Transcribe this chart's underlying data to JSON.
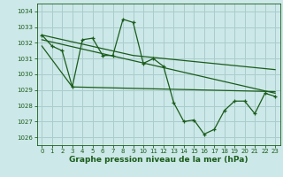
{
  "bg_color": "#cce8e8",
  "grid_color": "#aacccc",
  "line_color": "#1a5c1a",
  "title": "Graphe pression niveau de la mer (hPa)",
  "title_fontsize": 6.5,
  "xlim": [
    -0.5,
    23.5
  ],
  "ylim": [
    1025.5,
    1034.5
  ],
  "yticks": [
    1026,
    1027,
    1028,
    1029,
    1030,
    1031,
    1032,
    1033,
    1034
  ],
  "xticks": [
    0,
    1,
    2,
    3,
    4,
    5,
    6,
    7,
    8,
    9,
    10,
    11,
    12,
    13,
    14,
    15,
    16,
    17,
    18,
    19,
    20,
    21,
    22,
    23
  ],
  "series1_x": [
    0,
    1,
    2,
    3,
    4,
    5,
    6,
    7,
    8,
    9,
    10,
    11,
    12,
    13,
    14,
    15,
    16,
    17,
    18,
    19,
    20,
    21,
    22,
    23
  ],
  "series1_y": [
    1032.5,
    1031.8,
    1031.5,
    1029.2,
    1032.2,
    1032.3,
    1031.2,
    1031.2,
    1033.5,
    1033.3,
    1030.7,
    1031.0,
    1030.5,
    1028.2,
    1027.0,
    1027.1,
    1026.2,
    1026.5,
    1027.7,
    1028.3,
    1028.3,
    1027.5,
    1028.8,
    1028.6
  ],
  "series2_x": [
    0,
    23
  ],
  "series2_y": [
    1032.2,
    1028.8
  ],
  "series3_x": [
    0,
    3,
    23
  ],
  "series3_y": [
    1031.8,
    1029.2,
    1028.9
  ],
  "series4_x": [
    0,
    9,
    23
  ],
  "series4_y": [
    1032.5,
    1031.2,
    1030.3
  ]
}
